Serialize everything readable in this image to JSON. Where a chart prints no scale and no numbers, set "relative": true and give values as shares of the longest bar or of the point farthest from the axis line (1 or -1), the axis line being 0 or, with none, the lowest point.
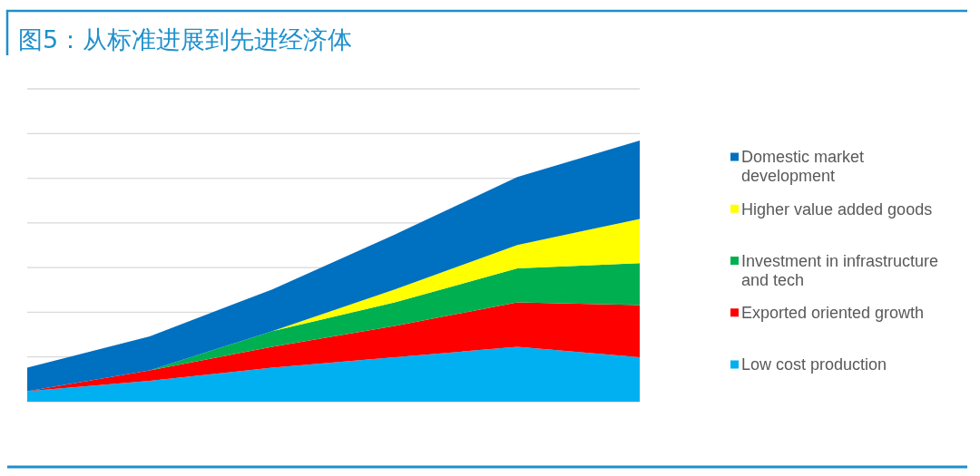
{
  "chart_data": {
    "type": "area",
    "title": "图5：从标准进展到先进经济体",
    "categories": [
      null,
      null,
      null,
      null,
      null,
      null
    ],
    "relative": true,
    "stacked": true,
    "grid": "y",
    "legend": "right",
    "series": [
      {
        "name": "Low cost production",
        "color": "#00b0f0",
        "values": [
          0.04,
          0.08,
          0.13,
          0.17,
          0.21,
          0.17
        ]
      },
      {
        "name": "Exported oriented growth",
        "color": "#ff0000",
        "values": [
          0,
          0.04,
          0.08,
          0.12,
          0.17,
          0.2
        ]
      },
      {
        "name": "Investment in infrastructure and tech",
        "color": "#00b050",
        "values": [
          0,
          0,
          0.06,
          0.09,
          0.13,
          0.16
        ]
      },
      {
        "name": "Higher value added goods",
        "color": "#ffff00",
        "values": [
          0,
          0,
          0,
          0.05,
          0.09,
          0.17
        ]
      },
      {
        "name": "Domestic market development",
        "color": "#0070c0",
        "values": [
          0.09,
          0.13,
          0.16,
          0.21,
          0.26,
          0.3
        ]
      }
    ]
  }
}
